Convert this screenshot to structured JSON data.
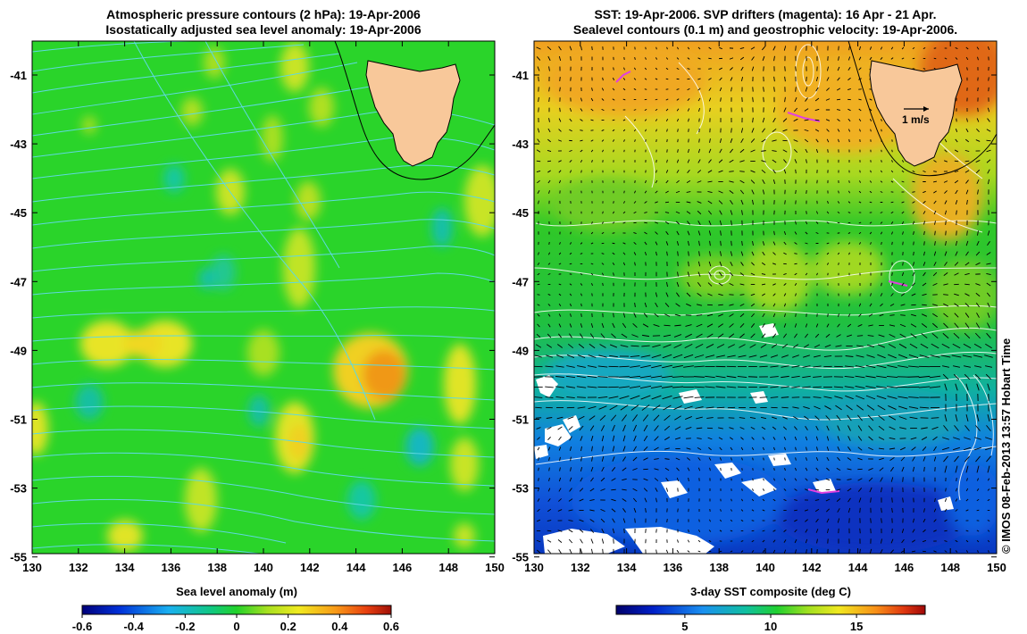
{
  "left_panel": {
    "title_line1": "Atmospheric pressure contours (2 hPa): 19-Apr-2006",
    "title_line2": "Isostatically adjusted sea level anomaly: 19-Apr-2006",
    "y_ticks": [
      "-41",
      "-43",
      "-45",
      "-47",
      "-49",
      "-51",
      "-53",
      "-55"
    ],
    "x_ticks": [
      "130",
      "132",
      "134",
      "136",
      "138",
      "140",
      "142",
      "144",
      "146",
      "148",
      "150"
    ],
    "colorbar": {
      "label": "Sea level anomaly (m)",
      "ticks": [
        "-0.6",
        "-0.4",
        "-0.2",
        "0",
        "0.2",
        "0.4",
        "0.6"
      ],
      "range": [
        -0.6,
        0.6
      ]
    },
    "colors": {
      "ocean": "#2ad42a",
      "contour": "#5fd8e0",
      "land": "#f8c89a"
    }
  },
  "right_panel": {
    "title_line1": "SST: 19-Apr-2006. SVP drifters (magenta): 16 Apr - 21 Apr.",
    "title_line2": "Sealevel contours (0.1 m) and geostrophic velocity: 19-Apr-2006.",
    "y_ticks": [
      "-41",
      "-43",
      "-45",
      "-47",
      "-49",
      "-51",
      "-53",
      "-55"
    ],
    "x_ticks": [
      "130",
      "132",
      "134",
      "136",
      "138",
      "140",
      "142",
      "144",
      "146",
      "148",
      "150"
    ],
    "scale_label": "1 m/s",
    "colorbar": {
      "label": "3-day SST composite (deg C)",
      "ticks": [
        "5",
        "10",
        "15"
      ],
      "range": [
        1,
        19
      ]
    },
    "colors": {
      "drifter": "#e040e0",
      "contour": "#ffffff",
      "land": "#f8c89a",
      "vector": "#000000"
    }
  },
  "credit": "© IMOS 08-Feb-2013 13:57 Hobart Time"
}
